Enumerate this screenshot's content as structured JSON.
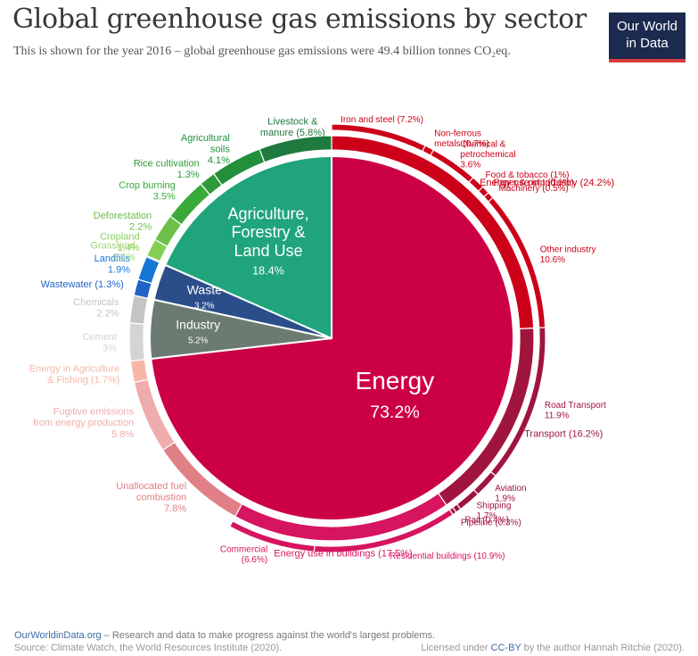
{
  "title": "Global greenhouse gas emissions by sector",
  "subtitle": "This is shown for the year 2016 – global greenhouse gas emissions were 49.4 billion tonnes CO₂eq.",
  "logo": {
    "line1": "Our World",
    "line2": "in Data"
  },
  "footer": {
    "site": "OurWorldinData.org",
    "tagline": " – Research and data to make progress against the world's largest problems.",
    "source": "Source: Climate Watch, the World Resources Institute (2020).",
    "license_prefix": "Licensed under ",
    "license": "CC-BY",
    "license_suffix": " by the author Hannah Ritchie  (2020)."
  },
  "chart_data": {
    "type": "pie",
    "unit": "%",
    "inner": [
      {
        "name": "Energy",
        "value": 73.2,
        "color": "#cc0044"
      },
      {
        "name": "Industry",
        "value": 5.2,
        "color": "#6b7b72"
      },
      {
        "name": "Waste",
        "value": 3.2,
        "color": "#2b4e8a"
      },
      {
        "name": "Agriculture, Forestry & Land Use",
        "value": 18.4,
        "color": "#1fa47b"
      }
    ],
    "middle": [
      {
        "name": "Energy use in Industry",
        "value": 24.2,
        "color": "#cc0018"
      },
      {
        "name": "Transport",
        "value": 16.2,
        "color": "#a0153e"
      },
      {
        "name": "Energy use in buildings",
        "value": 17.5,
        "color": "#d6145f"
      },
      {
        "name": "Unallocated fuel combustion",
        "value": 7.8,
        "color": "#e17f86"
      },
      {
        "name": "Fugitive emissions from energy production",
        "value": 5.8,
        "color": "#efacac"
      },
      {
        "name": "Energy in Agriculture & Fishing",
        "value": 1.7,
        "color": "#f6b7a6"
      },
      {
        "name": "Cement",
        "value": 3,
        "color": "#d4d4d4"
      },
      {
        "name": "Chemicals",
        "value": 2.2,
        "color": "#c4c4c4"
      },
      {
        "name": "Wastewater",
        "value": 1.3,
        "color": "#1f63c6"
      },
      {
        "name": "Landfills",
        "value": 1.9,
        "color": "#1577d5"
      },
      {
        "name": "Grassland",
        "value": 0.1,
        "color": "#9dd86c"
      },
      {
        "name": "Cropland",
        "value": 1.4,
        "color": "#86cf55"
      },
      {
        "name": "Deforestation",
        "value": 2.2,
        "color": "#6cc04a"
      },
      {
        "name": "Crop burning",
        "value": 3.5,
        "color": "#39aa3a"
      },
      {
        "name": "Rice cultivation",
        "value": 1.3,
        "color": "#2e9a3a"
      },
      {
        "name": "Agricultural soils",
        "value": 4.1,
        "color": "#22903a"
      },
      {
        "name": "Livestock & manure",
        "value": 5.8,
        "color": "#1e7a3e"
      }
    ],
    "outer": [
      {
        "name": "Iron and steel",
        "value": 7.2,
        "color": "#cc0018"
      },
      {
        "name": "Non-ferrous metals",
        "value": 0.7,
        "color": "#cc0018"
      },
      {
        "name": "Chemical & petrochemical",
        "value": 3.6,
        "color": "#cc0018"
      },
      {
        "name": "Food & tobacco",
        "value": 1,
        "color": "#cc0018"
      },
      {
        "name": "Paper & pulp",
        "value": 0.6,
        "color": "#cc0018"
      },
      {
        "name": "Machinery",
        "value": 0.5,
        "color": "#cc0018"
      },
      {
        "name": "Other industry",
        "value": 10.6,
        "color": "#cc0018"
      },
      {
        "name": "Road Transport",
        "value": 11.9,
        "color": "#a0153e"
      },
      {
        "name": "Aviation",
        "value": 1.9,
        "color": "#a0153e"
      },
      {
        "name": "Shipping",
        "value": 1.7,
        "color": "#a0153e"
      },
      {
        "name": "Rail",
        "value": 0.4,
        "color": "#a0153e"
      },
      {
        "name": "Pipeline",
        "value": 0.3,
        "color": "#a0153e"
      },
      {
        "name": "Residential buildings",
        "value": 10.9,
        "color": "#d6145f"
      },
      {
        "name": "Commercial",
        "value": 6.6,
        "color": "#d6145f"
      }
    ],
    "labels": {
      "inner": [
        {
          "lines": [
            "Energy",
            "73.2%"
          ]
        },
        {
          "lines": [
            "Industry",
            "5.2%"
          ]
        },
        {
          "lines": [
            "Waste",
            "3.2%"
          ]
        },
        {
          "lines": [
            "Agriculture,",
            "Forestry &",
            "Land Use",
            "18.4%"
          ]
        }
      ],
      "middle": [
        {
          "lines": [
            "Energy use in Industry (24.2%)"
          ]
        },
        {
          "lines": [
            "Transport (16.2%)"
          ]
        },
        {
          "lines": [
            "Energy use in buildings (17.5%)"
          ]
        },
        {
          "lines": [
            "Unallocated fuel",
            "combustion",
            "7.8%"
          ]
        },
        {
          "lines": [
            "Fugitive emissions",
            "from energy production",
            "5.8%"
          ]
        },
        {
          "lines": [
            "Energy in Agriculture",
            "& Fishing (1.7%)"
          ]
        },
        {
          "lines": [
            "Cement",
            "3%"
          ]
        },
        {
          "lines": [
            "Chemicals",
            "2.2%"
          ]
        },
        {
          "lines": [
            "Wastewater (1.3%)"
          ]
        },
        {
          "lines": [
            "Landfills",
            "1.9%"
          ]
        },
        {
          "lines": [
            "Grassland",
            "0.1%"
          ]
        },
        {
          "lines": [
            "Cropland",
            "1.4%"
          ]
        },
        {
          "lines": [
            "Deforestation",
            "2.2%"
          ]
        },
        {
          "lines": [
            "Crop burning",
            "3.5%"
          ]
        },
        {
          "lines": [
            "Rice cultivation",
            "1.3%"
          ]
        },
        {
          "lines": [
            "Agricultural",
            "soils",
            "4.1%"
          ]
        },
        {
          "lines": [
            "Livestock &",
            "manure (5.8%)"
          ]
        }
      ],
      "outer": [
        {
          "lines": [
            "Iron and steel (7.2%)"
          ]
        },
        {
          "lines": [
            "Non-ferrous",
            "metals (0.7%)"
          ]
        },
        {
          "lines": [
            "Chemical &",
            "petrochemical",
            "3.6%"
          ]
        },
        {
          "lines": [
            "Food & tobacco (1%)"
          ]
        },
        {
          "lines": [
            "Paper & pulp (0.6%)"
          ]
        },
        {
          "lines": [
            "Machinery (0.5%)"
          ]
        },
        {
          "lines": [
            "Other industry",
            "10.6%"
          ]
        },
        {
          "lines": [
            "Road Transport",
            "11.9%"
          ]
        },
        {
          "lines": [
            "Aviation",
            "1.9%"
          ]
        },
        {
          "lines": [
            "Shipping",
            "1.7%"
          ]
        },
        {
          "lines": [
            "Rail (0.4%)"
          ]
        },
        {
          "lines": [
            "Pipeline (0.3%)"
          ]
        },
        {
          "lines": [
            "Residential buildings (10.9%)"
          ]
        },
        {
          "lines": [
            "Commercial",
            "(6.6%)"
          ]
        }
      ]
    }
  }
}
